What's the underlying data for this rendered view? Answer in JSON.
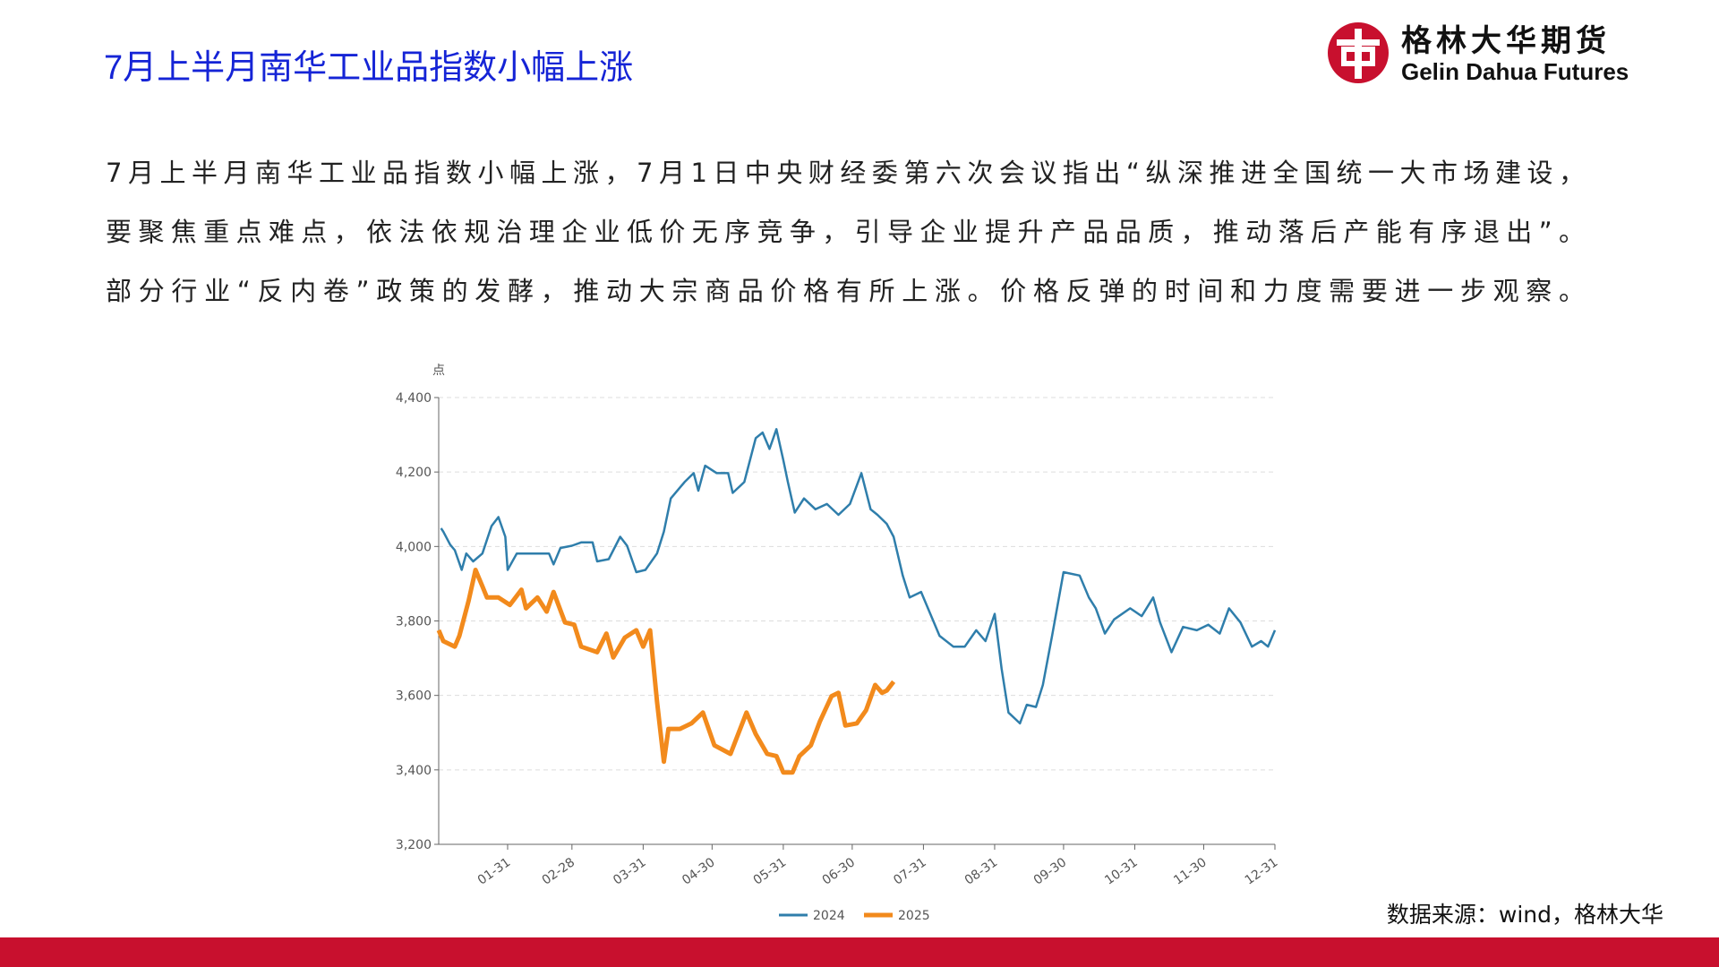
{
  "header": {
    "title": "7月上半月南华工业品指数小幅上涨",
    "logo_cn": "格林大华期货",
    "logo_en": "Gelin Dahua Futures"
  },
  "body_lines": [
    "7月上半月南华工业品指数小幅上涨，7月1日中央财经委第六次会议指出“纵深推进全国统一大市场建设，",
    "要聚焦重点难点，依法依规治理企业低价无序竞争，引导企业提升产品品质，推动落后产能有序退出”。",
    "部分行业“反内卷”政策的发酵，推动大宗商品价格有所上涨。价格反弹的时间和力度需要进一步观察。"
  ],
  "source": "数据来源：wind，格林大华",
  "chart_data": {
    "type": "line",
    "y_label": "点",
    "xlim": [
      "01-01",
      "12-31"
    ],
    "xticks": [
      "01-31",
      "02-28",
      "03-31",
      "04-30",
      "05-31",
      "06-30",
      "07-31",
      "08-31",
      "09-30",
      "10-31",
      "11-30",
      "12-31"
    ],
    "ylim": [
      3200,
      4400
    ],
    "yticks": [
      {
        "value": 3200,
        "label": "3,200"
      },
      {
        "value": 3400,
        "label": "3,400"
      },
      {
        "value": 3600,
        "label": "3,600"
      },
      {
        "value": 3800,
        "label": "3,800"
      },
      {
        "value": 4000,
        "label": "4,000"
      },
      {
        "value": 4200,
        "label": "4,200"
      },
      {
        "value": 4400,
        "label": "4,400"
      }
    ],
    "grid": true,
    "series": [
      {
        "name": "2024",
        "color": "#2f7eab",
        "x": [
          "01-02",
          "01-03",
          "01-06",
          "01-08",
          "01-11",
          "01-13",
          "01-16",
          "01-20",
          "01-24",
          "01-27",
          "01-30",
          "01-31",
          "02-04",
          "02-08",
          "02-18",
          "02-20",
          "02-23",
          "02-28",
          "03-04",
          "03-09",
          "03-11",
          "03-16",
          "03-21",
          "03-24",
          "03-28",
          "04-01",
          "04-06",
          "04-09",
          "04-12",
          "04-16",
          "04-18",
          "04-22",
          "04-24",
          "04-27",
          "05-02",
          "05-07",
          "05-09",
          "05-14",
          "05-19",
          "05-22",
          "05-25",
          "05-28",
          "05-31",
          "06-02",
          "06-05",
          "06-09",
          "06-14",
          "06-19",
          "06-24",
          "06-29",
          "07-04",
          "07-08",
          "07-11",
          "07-15",
          "07-18",
          "07-22",
          "07-25",
          "07-30",
          "08-03",
          "08-07",
          "08-13",
          "08-18",
          "08-23",
          "08-27",
          "08-31",
          "09-03",
          "09-06",
          "09-11",
          "09-14",
          "09-18",
          "09-21",
          "09-25",
          "09-30",
          "10-07",
          "10-11",
          "10-14",
          "10-18",
          "10-22",
          "10-29",
          "11-03",
          "11-08",
          "11-11",
          "11-16",
          "11-21",
          "11-27",
          "12-02",
          "12-07",
          "12-11",
          "12-16",
          "12-21",
          "12-25",
          "12-28",
          "12-31"
        ],
        "values": [
          4049,
          4040,
          4005,
          3990,
          3937,
          3981,
          3960,
          3981,
          4055,
          4079,
          4026,
          3937,
          3981,
          3981,
          3981,
          3952,
          3996,
          4002,
          4011,
          4011,
          3960,
          3966,
          4026,
          4002,
          3931,
          3937,
          3981,
          4040,
          4129,
          4158,
          4173,
          4197,
          4150,
          4217,
          4197,
          4197,
          4144,
          4173,
          4291,
          4306,
          4262,
          4315,
          4232,
          4173,
          4091,
          4129,
          4100,
          4114,
          4085,
          4114,
          4197,
          4100,
          4085,
          4061,
          4026,
          3922,
          3863,
          3878,
          3819,
          3760,
          3731,
          3731,
          3775,
          3746,
          3819,
          3672,
          3554,
          3525,
          3575,
          3569,
          3628,
          3760,
          3931,
          3922,
          3863,
          3834,
          3766,
          3804,
          3834,
          3813,
          3863,
          3796,
          3716,
          3784,
          3775,
          3790,
          3766,
          3834,
          3796,
          3731,
          3746,
          3731,
          3775
        ]
      },
      {
        "name": "2025",
        "color": "#f28a1c",
        "x": [
          "01-01",
          "01-03",
          "01-08",
          "01-10",
          "01-14",
          "01-17",
          "01-20",
          "01-22",
          "01-27",
          "02-01",
          "02-06",
          "02-08",
          "02-13",
          "02-17",
          "02-20",
          "02-25",
          "03-01",
          "03-04",
          "03-11",
          "03-15",
          "03-18",
          "03-23",
          "03-28",
          "03-31",
          "04-03",
          "04-06",
          "04-09",
          "04-11",
          "04-16",
          "04-21",
          "04-26",
          "05-01",
          "05-08",
          "05-15",
          "05-19",
          "05-24",
          "05-28",
          "05-31",
          "06-04",
          "06-07",
          "06-12",
          "06-16",
          "06-21",
          "06-24",
          "06-27",
          "07-02",
          "07-06",
          "07-10",
          "07-13",
          "07-15",
          "07-18"
        ],
        "values": [
          3775,
          3746,
          3731,
          3760,
          3854,
          3937,
          3893,
          3863,
          3863,
          3843,
          3884,
          3834,
          3863,
          3825,
          3878,
          3796,
          3790,
          3731,
          3716,
          3766,
          3702,
          3755,
          3775,
          3731,
          3775,
          3584,
          3422,
          3510,
          3510,
          3525,
          3554,
          3466,
          3443,
          3554,
          3496,
          3443,
          3437,
          3393,
          3393,
          3437,
          3466,
          3531,
          3598,
          3607,
          3519,
          3525,
          3560,
          3628,
          3607,
          3613,
          3637
        ]
      }
    ]
  }
}
